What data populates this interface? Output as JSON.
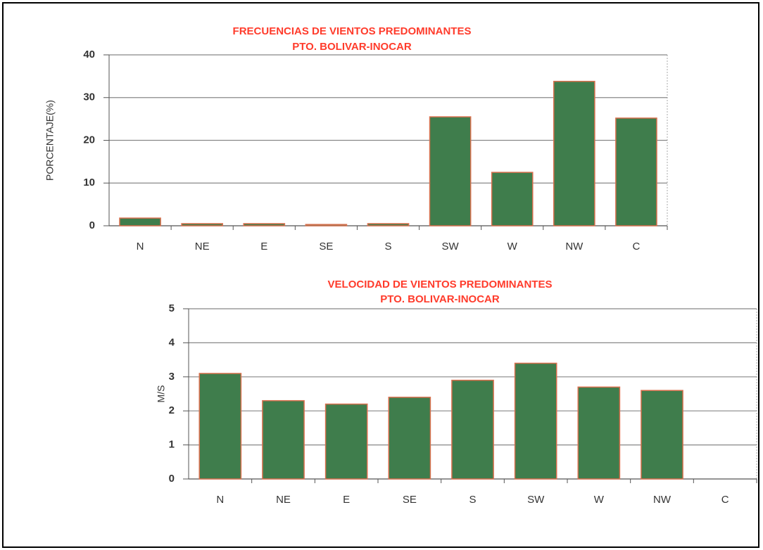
{
  "chart_data": [
    {
      "type": "bar",
      "title": "FRECUENCIAS DE VIENTOS PREDOMINANTES",
      "subtitle": "PTO. BOLIVAR-INOCAR",
      "ylabel": "PORCENTAJE(%)",
      "categories": [
        "N",
        "NE",
        "E",
        "SE",
        "S",
        "SW",
        "W",
        "NW",
        "C"
      ],
      "values": [
        1.8,
        0.5,
        0.5,
        0.3,
        0.5,
        25.5,
        12.5,
        33.8,
        25.2
      ],
      "color": "#3f7d4c",
      "ylim": [
        0,
        40
      ],
      "yticks": [
        0,
        10,
        20,
        30,
        40
      ],
      "grid": true
    },
    {
      "type": "bar",
      "title": "VELOCIDAD DE VIENTOS PREDOMINANTES",
      "subtitle": "PTO. BOLIVAR-INOCAR",
      "ylabel": "M/S",
      "categories": [
        "N",
        "NE",
        "E",
        "SE",
        "S",
        "SW",
        "W",
        "NW",
        "C"
      ],
      "values": [
        3.1,
        2.3,
        2.2,
        2.4,
        2.9,
        3.4,
        2.7,
        2.6,
        null
      ],
      "color": "#3f7d4c",
      "ylim": [
        0,
        5
      ],
      "yticks": [
        0,
        1,
        2,
        3,
        4,
        5
      ],
      "grid": true
    }
  ]
}
